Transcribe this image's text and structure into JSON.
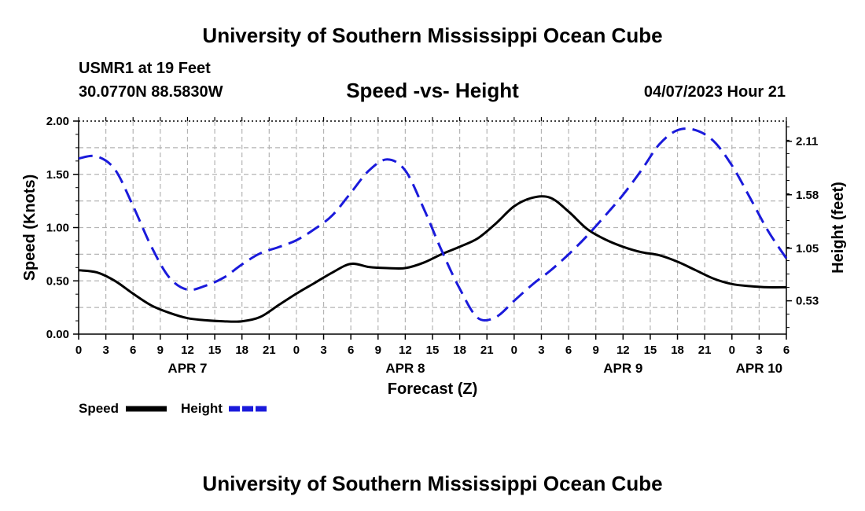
{
  "header": {
    "title": "University of Southern Mississippi Ocean Cube",
    "station": "USMR1 at 19 Feet",
    "coords": "30.0770N  88.5830W",
    "subtitle": "Speed -vs- Height",
    "run_time": "04/07/2023 Hour 21"
  },
  "footer": {
    "title": "University of Southern Mississippi Ocean Cube"
  },
  "colors": {
    "speed": "#000000",
    "height": "#1a1adb",
    "grid": "#b4b4b4"
  },
  "chart_data": {
    "type": "line",
    "title": "Speed -vs- Height",
    "xlabel": "Forecast (Z)",
    "ylabel": "Speed (Knots)",
    "y2label": "Height (feet)",
    "xlim": [
      0,
      78
    ],
    "ylim": [
      0,
      2.0
    ],
    "y2lim": [
      0.2,
      2.31
    ],
    "grid": true,
    "x_tick_labels": [
      "0",
      "3",
      "6",
      "9",
      "12",
      "15",
      "18",
      "21",
      "0",
      "3",
      "6",
      "9",
      "12",
      "15",
      "18",
      "21",
      "0",
      "3",
      "6",
      "9",
      "12",
      "15",
      "18",
      "21",
      "0",
      "3",
      "6"
    ],
    "y_ticks": [
      "0.00",
      "0.50",
      "1.00",
      "1.50",
      "2.00"
    ],
    "y2_ticks": [
      "0.53",
      "1.05",
      "1.58",
      "2.11"
    ],
    "day_labels": [
      {
        "hour": 12,
        "label": "APR 7"
      },
      {
        "hour": 36,
        "label": "APR 8"
      },
      {
        "hour": 60,
        "label": "APR 9"
      },
      {
        "hour": 75,
        "label": "APR 10"
      }
    ],
    "legend": {
      "position": "bottom-left",
      "entries": [
        "Speed",
        "Height"
      ]
    },
    "series": [
      {
        "name": "Speed",
        "axis": "left",
        "style": "solid",
        "x": [
          0,
          2,
          4,
          6,
          8,
          10,
          12,
          14,
          16,
          18,
          20,
          22,
          24,
          26,
          28,
          30,
          32,
          34,
          36,
          38,
          40,
          42,
          44,
          46,
          48,
          50,
          52,
          54,
          56,
          58,
          60,
          62,
          64,
          66,
          68,
          70,
          72,
          74,
          76,
          78
        ],
        "values": [
          0.6,
          0.58,
          0.5,
          0.38,
          0.27,
          0.2,
          0.15,
          0.13,
          0.12,
          0.12,
          0.16,
          0.27,
          0.38,
          0.48,
          0.58,
          0.66,
          0.63,
          0.62,
          0.62,
          0.67,
          0.75,
          0.82,
          0.9,
          1.04,
          1.2,
          1.28,
          1.28,
          1.15,
          0.99,
          0.89,
          0.82,
          0.77,
          0.74,
          0.68,
          0.6,
          0.52,
          0.47,
          0.45,
          0.44,
          0.44
        ]
      },
      {
        "name": "Height",
        "axis": "right",
        "style": "dashed",
        "x": [
          0,
          2,
          4,
          6,
          8,
          10,
          12,
          14,
          16,
          18,
          20,
          22,
          24,
          26,
          28,
          30,
          32,
          34,
          36,
          38,
          40,
          42,
          44,
          46,
          48,
          50,
          52,
          54,
          56,
          58,
          60,
          62,
          64,
          66,
          68,
          70,
          72,
          74,
          76,
          78
        ],
        "values": [
          1.94,
          1.96,
          1.83,
          1.47,
          1.07,
          0.76,
          0.64,
          0.68,
          0.76,
          0.89,
          1.0,
          1.06,
          1.13,
          1.24,
          1.38,
          1.6,
          1.82,
          1.93,
          1.82,
          1.45,
          1.03,
          0.65,
          0.36,
          0.37,
          0.53,
          0.69,
          0.83,
          0.99,
          1.17,
          1.37,
          1.58,
          1.82,
          2.08,
          2.22,
          2.22,
          2.11,
          1.87,
          1.55,
          1.22,
          0.95
        ]
      }
    ]
  }
}
